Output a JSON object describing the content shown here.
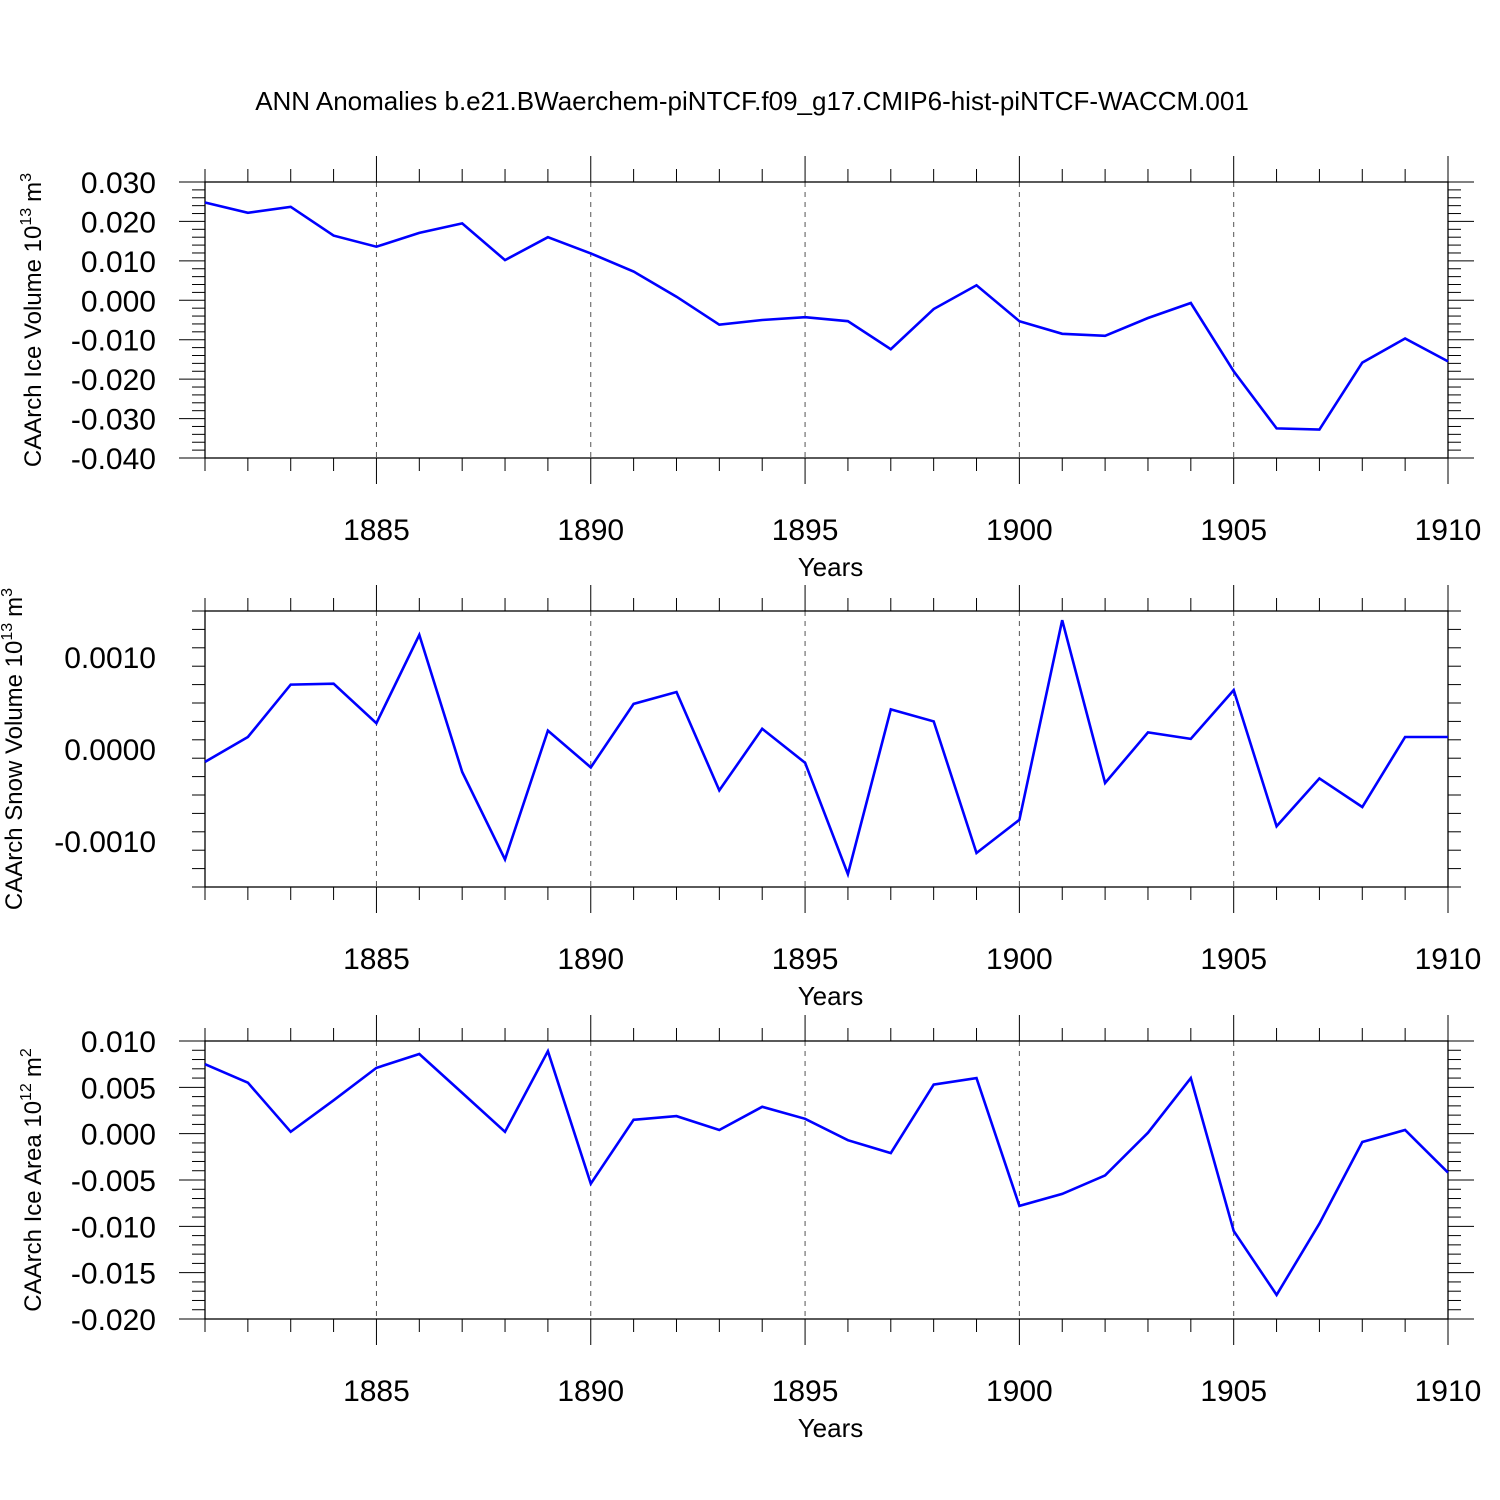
{
  "title": "ANN Anomalies b.e21.BWaerchem-piNTCF.f09_g17.CMIP6-hist-piNTCF-WACCM.001",
  "colors": {
    "line": "#0000ff",
    "axis": "#000000",
    "grid": "#555555"
  },
  "chart_data": [
    {
      "type": "line",
      "ylabel": "CAArch Ice Volume 10",
      "ylabel_exp": "13",
      "ylabel_unit": "m",
      "ylabel_unit_exp": "3",
      "xlabel": "Years",
      "xlim": [
        1881,
        1910
      ],
      "ylim": [
        -0.04,
        0.03
      ],
      "yticks": [
        -0.04,
        -0.03,
        -0.02,
        -0.01,
        0.0,
        0.01,
        0.02,
        0.03
      ],
      "ytick_labels": [
        "-0.040",
        "-0.030",
        "-0.020",
        "-0.010",
        "0.000",
        "0.010",
        "0.020",
        "0.030"
      ],
      "xticks": [
        1885,
        1890,
        1895,
        1900,
        1905,
        1910
      ],
      "xtick_labels": [
        "1885",
        "1890",
        "1895",
        "1900",
        "1905",
        "1910"
      ],
      "grid": "vertical-dashed",
      "x": [
        1881,
        1882,
        1883,
        1884,
        1885,
        1886,
        1887,
        1888,
        1889,
        1890,
        1891,
        1892,
        1893,
        1894,
        1895,
        1896,
        1897,
        1898,
        1899,
        1900,
        1901,
        1902,
        1903,
        1904,
        1905,
        1906,
        1907,
        1908,
        1909,
        1910
      ],
      "values": [
        0.0248,
        0.0222,
        0.0237,
        0.0164,
        0.0136,
        0.0171,
        0.0195,
        0.0102,
        0.016,
        0.0119,
        0.0073,
        0.0009,
        -0.0062,
        -0.005,
        -0.0043,
        -0.0053,
        -0.0124,
        -0.0022,
        0.0038,
        -0.0053,
        -0.0085,
        -0.009,
        -0.0045,
        -0.0007,
        -0.018,
        -0.0325,
        -0.0328,
        -0.0158,
        -0.0097,
        -0.0155
      ]
    },
    {
      "type": "line",
      "ylabel": "CAArch Snow Volume 10",
      "ylabel_exp": "13",
      "ylabel_unit": "m",
      "ylabel_unit_exp": "3",
      "xlabel": "Years",
      "xlim": [
        1881,
        1910
      ],
      "ylim": [
        -0.0015,
        0.0015
      ],
      "yticks": [
        -0.001,
        0.0,
        0.001
      ],
      "ytick_labels": [
        "-0.0010",
        "0.0000",
        "0.0010"
      ],
      "xticks": [
        1885,
        1890,
        1895,
        1900,
        1905,
        1910
      ],
      "xtick_labels": [
        "1885",
        "1890",
        "1895",
        "1900",
        "1905",
        "1910"
      ],
      "grid": "vertical-dashed",
      "x": [
        1881,
        1882,
        1883,
        1884,
        1885,
        1886,
        1887,
        1888,
        1889,
        1890,
        1891,
        1892,
        1893,
        1894,
        1895,
        1896,
        1897,
        1898,
        1899,
        1900,
        1901,
        1902,
        1903,
        1904,
        1905,
        1906,
        1907,
        1908,
        1909,
        1910
      ],
      "values": [
        -0.00014,
        0.00013,
        0.0007,
        0.00071,
        0.00028,
        0.00124,
        -0.00025,
        -0.0012,
        0.0002,
        -0.0002,
        0.00049,
        0.00062,
        -0.00045,
        0.00022,
        -0.00015,
        -0.00136,
        0.00043,
        0.0003,
        -0.00113,
        -0.00077,
        0.0014,
        -0.00037,
        0.00018,
        0.00011,
        0.00064,
        -0.00084,
        -0.00032,
        -0.00063,
        0.00013,
        0.00013
      ]
    },
    {
      "type": "line",
      "ylabel": "CAArch Ice Area 10",
      "ylabel_exp": "12",
      "ylabel_unit": "m",
      "ylabel_unit_exp": "2",
      "xlabel": "Years",
      "xlim": [
        1881,
        1910
      ],
      "ylim": [
        -0.02,
        0.01
      ],
      "yticks": [
        -0.02,
        -0.015,
        -0.01,
        -0.005,
        0.0,
        0.005,
        0.01
      ],
      "ytick_labels": [
        "-0.020",
        "-0.015",
        "-0.010",
        "-0.005",
        "0.000",
        "0.005",
        "0.010"
      ],
      "xticks": [
        1885,
        1890,
        1895,
        1900,
        1905,
        1910
      ],
      "xtick_labels": [
        "1885",
        "1890",
        "1895",
        "1900",
        "1905",
        "1910"
      ],
      "grid": "vertical-dashed",
      "x": [
        1881,
        1882,
        1883,
        1884,
        1885,
        1886,
        1887,
        1888,
        1889,
        1890,
        1891,
        1892,
        1893,
        1894,
        1895,
        1896,
        1897,
        1898,
        1899,
        1900,
        1901,
        1902,
        1903,
        1904,
        1905,
        1906,
        1907,
        1908,
        1909,
        1910
      ],
      "values": [
        0.0075,
        0.0055,
        0.0002,
        0.0036,
        0.0071,
        0.0086,
        0.0044,
        0.0002,
        0.0089,
        -0.0054,
        0.0015,
        0.0019,
        0.0004,
        0.0029,
        0.0016,
        -0.0007,
        -0.0021,
        0.0053,
        0.006,
        -0.0078,
        -0.0065,
        -0.0045,
        0.0001,
        0.006,
        -0.0105,
        -0.0174,
        -0.0097,
        -0.0009,
        0.0004,
        -0.0042
      ]
    }
  ]
}
